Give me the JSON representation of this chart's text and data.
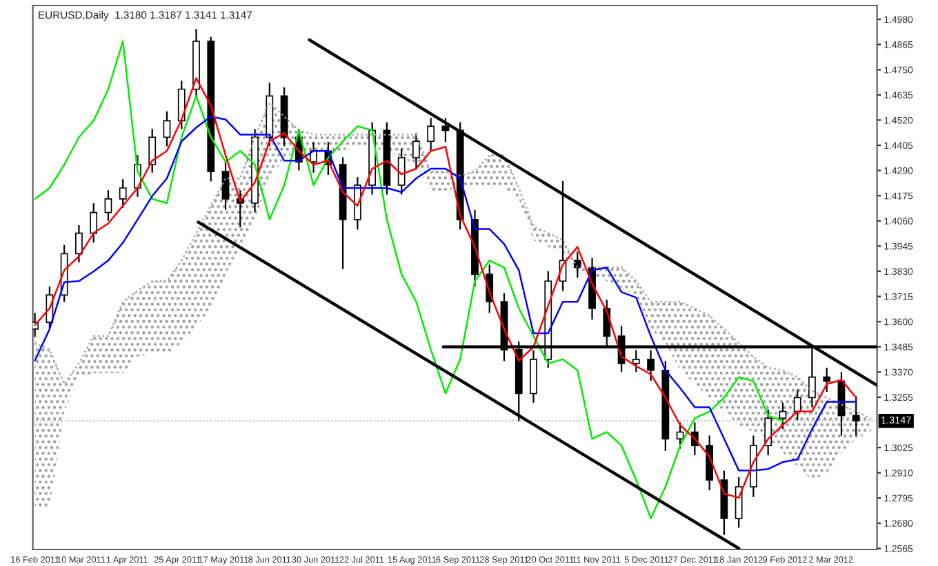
{
  "chart_data": {
    "type": "candlestick",
    "title": "EURUSD,Daily  1.3180 1.3187 1.3141 1.3147",
    "x": [
      "2011-02-16",
      "2011-02-23",
      "2011-03-02",
      "2011-03-09",
      "2011-03-16",
      "2011-03-23",
      "2011-03-30",
      "2011-04-06",
      "2011-04-13",
      "2011-04-20",
      "2011-04-27",
      "2011-05-04",
      "2011-05-11",
      "2011-05-18",
      "2011-05-25",
      "2011-06-01",
      "2011-06-08",
      "2011-06-15",
      "2011-06-22",
      "2011-06-29",
      "2011-07-06",
      "2011-07-13",
      "2011-07-20",
      "2011-07-27",
      "2011-08-03",
      "2011-08-10",
      "2011-08-17",
      "2011-08-24",
      "2011-08-31",
      "2011-09-07",
      "2011-09-14",
      "2011-09-21",
      "2011-09-28",
      "2011-10-05",
      "2011-10-12",
      "2011-10-19",
      "2011-10-26",
      "2011-11-02",
      "2011-11-09",
      "2011-11-16",
      "2011-11-23",
      "2011-11-30",
      "2011-12-07",
      "2011-12-14",
      "2011-12-21",
      "2011-12-28",
      "2012-01-04",
      "2012-01-11",
      "2012-01-18",
      "2012-01-25",
      "2012-02-01",
      "2012-02-08",
      "2012-02-15",
      "2012-02-22",
      "2012-02-29",
      "2012-03-07",
      "2012-03-14"
    ],
    "ohlc": [
      [
        1.3566,
        1.364,
        1.353,
        1.3597
      ],
      [
        1.3597,
        1.376,
        1.357,
        1.3722
      ],
      [
        1.3722,
        1.395,
        1.369,
        1.391
      ],
      [
        1.391,
        1.404,
        1.387,
        1.4004
      ],
      [
        1.4004,
        1.414,
        1.396,
        1.4098
      ],
      [
        1.4098,
        1.42,
        1.406,
        1.416
      ],
      [
        1.416,
        1.425,
        1.412,
        1.421
      ],
      [
        1.421,
        1.436,
        1.417,
        1.4317
      ],
      [
        1.4317,
        1.448,
        1.428,
        1.4442
      ],
      [
        1.4442,
        1.456,
        1.44,
        1.4517
      ],
      [
        1.4517,
        1.47,
        1.448,
        1.4661
      ],
      [
        1.4661,
        1.4935,
        1.462,
        1.488
      ],
      [
        1.488,
        1.49,
        1.424,
        1.4285
      ],
      [
        1.4285,
        1.433,
        1.411,
        1.416
      ],
      [
        1.416,
        1.42,
        1.403,
        1.4141
      ],
      [
        1.4141,
        1.448,
        1.41,
        1.4442
      ],
      [
        1.4442,
        1.469,
        1.44,
        1.463
      ],
      [
        1.463,
        1.467,
        1.44,
        1.4442
      ],
      [
        1.4442,
        1.448,
        1.429,
        1.4329
      ],
      [
        1.4329,
        1.442,
        1.428,
        1.4379
      ],
      [
        1.4379,
        1.442,
        1.427,
        1.4317
      ],
      [
        1.4317,
        1.435,
        1.384,
        1.4066
      ],
      [
        1.4066,
        1.426,
        1.402,
        1.4223
      ],
      [
        1.4223,
        1.451,
        1.418,
        1.4473
      ],
      [
        1.4473,
        1.451,
        1.418,
        1.4223
      ],
      [
        1.4223,
        1.439,
        1.418,
        1.4348
      ],
      [
        1.4348,
        1.446,
        1.43,
        1.4423
      ],
      [
        1.4423,
        1.453,
        1.438,
        1.4492
      ],
      [
        1.4492,
        1.453,
        1.442,
        1.4473
      ],
      [
        1.4473,
        1.451,
        1.402,
        1.4066
      ],
      [
        1.4066,
        1.411,
        1.376,
        1.3816
      ],
      [
        1.3816,
        1.386,
        1.364,
        1.3691
      ],
      [
        1.3691,
        1.373,
        1.342,
        1.3472
      ],
      [
        1.3472,
        1.351,
        1.3146,
        1.3272
      ],
      [
        1.3272,
        1.347,
        1.323,
        1.3428
      ],
      [
        1.3428,
        1.383,
        1.339,
        1.3785
      ],
      [
        1.3785,
        1.4242,
        1.374,
        1.3879
      ],
      [
        1.3879,
        1.392,
        1.38,
        1.3847
      ],
      [
        1.3847,
        1.389,
        1.361,
        1.366
      ],
      [
        1.366,
        1.37,
        1.349,
        1.3534
      ],
      [
        1.3534,
        1.358,
        1.337,
        1.3409
      ],
      [
        1.3409,
        1.347,
        1.337,
        1.3428
      ],
      [
        1.3428,
        1.347,
        1.333,
        1.3378
      ],
      [
        1.3378,
        1.342,
        1.301,
        1.3065
      ],
      [
        1.3065,
        1.314,
        1.302,
        1.3096
      ],
      [
        1.3096,
        1.314,
        1.299,
        1.3034
      ],
      [
        1.3034,
        1.308,
        1.283,
        1.2877
      ],
      [
        1.2877,
        1.292,
        1.2627,
        1.2702
      ],
      [
        1.2702,
        1.289,
        1.266,
        1.2846
      ],
      [
        1.2846,
        1.308,
        1.28,
        1.3034
      ],
      [
        1.3034,
        1.32,
        1.299,
        1.3159
      ],
      [
        1.3159,
        1.323,
        1.311,
        1.319
      ],
      [
        1.319,
        1.329,
        1.315,
        1.3253
      ],
      [
        1.3253,
        1.349,
        1.321,
        1.3347
      ],
      [
        1.3347,
        1.339,
        1.328,
        1.3328
      ],
      [
        1.3328,
        1.337,
        1.308,
        1.3171
      ],
      [
        1.3171,
        1.326,
        1.308,
        1.3147
      ]
    ],
    "series": [
      {
        "type": "line",
        "color": "#a0a0a0",
        "line_style": "dotted",
        "x": [
          "2011-02-16",
          "2011-02-23",
          "2011-03-02",
          "2011-03-09",
          "2011-03-16",
          "2011-03-23",
          "2011-03-30",
          "2011-04-06",
          "2011-04-13",
          "2011-04-20",
          "2011-04-27",
          "2011-05-04",
          "2011-05-11",
          "2011-05-18",
          "2011-05-25",
          "2011-06-01",
          "2011-06-08",
          "2011-06-15",
          "2011-06-22",
          "2011-06-29",
          "2011-07-06",
          "2011-07-13",
          "2011-07-20",
          "2011-07-27",
          "2011-08-03",
          "2011-08-10",
          "2011-08-17",
          "2011-08-24",
          "2011-08-31",
          "2011-09-07",
          "2011-09-14",
          "2011-09-21",
          "2011-09-28",
          "2011-10-05",
          "2011-10-12",
          "2011-10-19",
          "2011-10-26",
          "2011-11-02",
          "2011-11-09",
          "2011-11-16",
          "2011-11-23",
          "2011-11-30",
          "2011-12-07",
          "2011-12-14",
          "2011-12-21",
          "2011-12-28",
          "2012-01-04",
          "2012-01-11",
          "2012-01-18",
          "2012-01-25",
          "2012-02-01",
          "2012-02-08",
          "2012-02-15",
          "2012-02-22",
          "2012-02-29",
          "2012-03-07",
          "2012-03-14",
          "2012-03-21"
        ],
        "values": [
          1.3503,
          1.3472,
          1.3315,
          1.3409,
          1.3534,
          1.3534,
          1.3691,
          1.3741,
          1.3785,
          1.3785,
          1.3879,
          1.4004,
          1.4129,
          1.4254,
          1.4254,
          1.4442,
          1.4598,
          1.4536,
          1.4473,
          1.4454,
          1.4454,
          1.4454,
          1.4454,
          1.4454,
          1.4454,
          1.4454,
          1.4454,
          1.4285,
          1.4285,
          1.4267,
          1.4285,
          1.436,
          1.436,
          1.421,
          1.4035,
          1.4004,
          1.3972,
          1.3847,
          1.3847,
          1.3847,
          1.3847,
          1.3785,
          1.3691,
          1.3691,
          1.3691,
          1.366,
          1.3628,
          1.3566,
          1.3503,
          1.344,
          1.339,
          1.3378,
          1.3347,
          1.3284,
          1.3253,
          1.3222,
          1.319,
          1.3159
        ],
        "lower": [
          1.2752,
          1.2752,
          1.319,
          1.3347,
          1.3365,
          1.3365,
          1.3365,
          1.3441,
          1.3453,
          1.3453,
          1.3503,
          1.3578,
          1.366,
          1.3816,
          1.3941,
          1.4066,
          1.4254,
          1.4348,
          1.4379,
          1.4379,
          1.4379,
          1.4379,
          1.441,
          1.4392,
          1.4379,
          1.4348,
          1.4317,
          1.4191,
          1.4191,
          1.4223,
          1.4223,
          1.421,
          1.421,
          1.416,
          1.3972,
          1.3941,
          1.391,
          1.3816,
          1.3816,
          1.3785,
          1.3753,
          1.3722,
          1.3566,
          1.3503,
          1.3378,
          1.3315,
          1.3253,
          1.319,
          1.3128,
          1.3096,
          1.3065,
          1.3002,
          1.294,
          1.2877,
          1.2909,
          1.3002,
          1.3065,
          1.3096
        ],
        "upper": [
          1.3503,
          1.3472,
          1.3315,
          1.3409,
          1.3534,
          1.3534,
          1.3691,
          1.3741,
          1.3785,
          1.3785,
          1.3879,
          1.4004,
          1.4129,
          1.4254,
          1.4254,
          1.4442,
          1.4598,
          1.4536,
          1.4473,
          1.4454,
          1.4454,
          1.4454,
          1.4454,
          1.4454,
          1.4454,
          1.4454,
          1.4454,
          1.4285,
          1.4285,
          1.4267,
          1.4285,
          1.436,
          1.436,
          1.421,
          1.4035,
          1.4004,
          1.3972,
          1.3847,
          1.3847,
          1.3847,
          1.3847,
          1.3785,
          1.3691,
          1.3691,
          1.3691,
          1.366,
          1.3628,
          1.3566,
          1.3503,
          1.344,
          1.339,
          1.3378,
          1.3347,
          1.3284,
          1.3253,
          1.3222,
          1.319,
          1.3159
        ]
      },
      {
        "type": "line",
        "color": "#00ee00",
        "values": [
          1.416,
          1.421,
          1.4317,
          1.4442,
          1.4517,
          1.4661,
          1.488,
          1.4285,
          1.416,
          1.4141,
          1.4442,
          1.463,
          1.4442,
          1.4329,
          1.4379,
          1.4317,
          1.4066,
          1.4223,
          1.4473,
          1.4223,
          1.4348,
          1.4423,
          1.4492,
          1.4473,
          1.4066,
          1.3816,
          1.3691,
          1.3472,
          1.3272,
          1.3428,
          1.3785,
          1.3879,
          1.3847,
          1.366,
          1.3534,
          1.3409,
          1.3428,
          1.3378,
          1.3065,
          1.3096,
          1.3034,
          1.2877,
          1.2702,
          1.2846,
          1.3034,
          1.3159,
          1.319,
          1.3253,
          1.3347,
          1.3328,
          1.3171,
          1.3147,
          null,
          null,
          null,
          null,
          null
        ]
      },
      {
        "type": "line",
        "color": "#0000ff",
        "values": [
          1.3422,
          1.3566,
          1.378,
          1.3785,
          1.3829,
          1.3879,
          1.396,
          1.4066,
          1.4173,
          1.4254,
          1.4423,
          1.4486,
          1.4536,
          1.4523,
          1.4454,
          1.4454,
          1.4454,
          1.4335,
          1.4335,
          1.4379,
          1.4379,
          1.421,
          1.421,
          1.421,
          1.421,
          1.4191,
          1.4254,
          1.4298,
          1.4298,
          1.4254,
          1.4023,
          1.4023,
          1.3954,
          1.3835,
          1.3547,
          1.3547,
          1.3691,
          1.3691,
          1.3835,
          1.3847,
          1.3735,
          1.371,
          1.3534,
          1.3378,
          1.3297,
          1.3209,
          1.3209,
          1.3065,
          1.2921,
          1.2921,
          1.2927,
          1.2959,
          1.2971,
          1.3109,
          1.3234,
          1.3234,
          1.3234
        ]
      },
      {
        "type": "line",
        "color": "#ff0000",
        "values": [
          1.3585,
          1.366,
          1.3835,
          1.3898,
          1.4004,
          1.4048,
          1.4129,
          1.421,
          1.4335,
          1.4379,
          1.4523,
          1.4711,
          1.4586,
          1.436,
          1.4148,
          1.4235,
          1.4423,
          1.4461,
          1.4379,
          1.4317,
          1.4335,
          1.4191,
          1.4129,
          1.4298,
          1.4335,
          1.4273,
          1.4298,
          1.4379,
          1.4398,
          1.4085,
          1.3941,
          1.3735,
          1.3566,
          1.3422,
          1.3484,
          1.3672,
          1.386,
          1.3941,
          1.3772,
          1.3647,
          1.3441,
          1.3397,
          1.3359,
          1.3253,
          1.3128,
          1.3065,
          1.2984,
          1.2815,
          1.2796,
          1.2959,
          1.3065,
          1.3128,
          1.319,
          1.319,
          1.3315,
          1.3334,
          1.3253
        ]
      },
      {
        "type": "line",
        "color": "#000000",
        "x": [
          "2011-06-27",
          "2012-03-24"
        ],
        "values": [
          1.4886,
          1.3309
        ]
      },
      {
        "type": "line",
        "color": "#000000",
        "x": [
          "2011-05-05",
          "2012-01-18"
        ],
        "values": [
          1.4054,
          1.2565
        ]
      },
      {
        "type": "line",
        "color": "#000000",
        "x": [
          "2011-08-30",
          "2012-03-24"
        ],
        "values": [
          1.3485,
          1.3485
        ]
      }
    ],
    "ref_lines": [
      {
        "axis": "y",
        "value": 1.3147,
        "label": "1.3147",
        "color": "#b0b0b0",
        "line_style": "dotted"
      }
    ],
    "xlim": [
      "2011-02-15",
      "2012-03-24"
    ],
    "xticks": [
      {
        "value": "2011-02-16",
        "label": "16 Feb 2011"
      },
      {
        "value": "2011-03-10",
        "label": "10 Mar 2011"
      },
      {
        "value": "2011-04-01",
        "label": "1 Apr 2011"
      },
      {
        "value": "2011-04-25",
        "label": "25 Apr 2011"
      },
      {
        "value": "2011-05-17",
        "label": "17 May 2011"
      },
      {
        "value": "2011-06-08",
        "label": "8 Jun 2011"
      },
      {
        "value": "2011-06-30",
        "label": "30 Jun 2011"
      },
      {
        "value": "2011-07-22",
        "label": "22 Jul 2011"
      },
      {
        "value": "2011-08-15",
        "label": "15 Aug 2011"
      },
      {
        "value": "2011-09-06",
        "label": "6 Sep 2011"
      },
      {
        "value": "2011-09-28",
        "label": "28 Sep 2011"
      },
      {
        "value": "2011-10-20",
        "label": "20 Oct 2011"
      },
      {
        "value": "2011-11-11",
        "label": "11 Nov 2011"
      },
      {
        "value": "2011-12-05",
        "label": "5 Dec 2011"
      },
      {
        "value": "2011-12-27",
        "label": "27 Dec 2011"
      },
      {
        "value": "2012-01-18",
        "label": "18 Jan 2012"
      },
      {
        "value": "2012-02-09",
        "label": "9 Feb 2012"
      },
      {
        "value": "2012-03-02",
        "label": "2 Mar 2012"
      }
    ],
    "ylim": [
      1.256,
      1.5043
    ],
    "yticks": [
      1.2565,
      {
        "value": 1.268,
        "label": "1.2680"
      },
      1.2795,
      {
        "value": 1.291,
        "label": "1.2910"
      },
      1.3025,
      1.3255,
      {
        "value": 1.337,
        "label": "1.3370"
      },
      1.3485,
      {
        "value": 1.36,
        "label": "1.3600"
      },
      1.3715,
      {
        "value": 1.383,
        "label": "1.3830"
      },
      1.3945,
      {
        "value": 1.406,
        "label": "1.4060"
      },
      1.4175,
      {
        "value": 1.429,
        "label": "1.4290"
      },
      1.4405,
      {
        "value": 1.452,
        "label": "1.4520"
      },
      1.4635,
      {
        "value": 1.475,
        "label": "1.4750"
      },
      1.4865,
      {
        "value": 1.498,
        "label": "1.4980"
      }
    ]
  }
}
